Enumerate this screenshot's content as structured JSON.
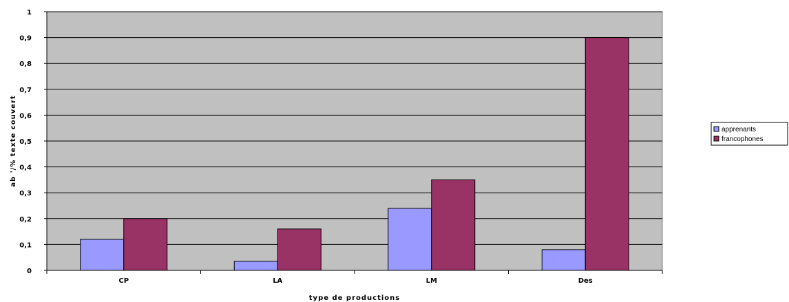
{
  "chart_data": {
    "type": "bar",
    "title": "",
    "xlabel": "type de productions",
    "ylabel": "ab '/% texte couvert",
    "categories": [
      "CP",
      "LA",
      "LM",
      "Des"
    ],
    "series": [
      {
        "name": "apprenants",
        "values": [
          0.12,
          0.035,
          0.24,
          0.08
        ],
        "color": "#9999ff"
      },
      {
        "name": "francophones",
        "values": [
          0.2,
          0.16,
          0.35,
          0.9
        ],
        "color": "#993366"
      }
    ],
    "ylim": [
      0,
      1
    ],
    "yticks": [
      0,
      0.1,
      0.2,
      0.3,
      0.4,
      0.5,
      0.6,
      0.7,
      0.8,
      0.9,
      1
    ],
    "ytick_labels": [
      "0",
      "0,1",
      "0,2",
      "0,3",
      "0,4",
      "0,5",
      "0,6",
      "0,7",
      "0,8",
      "0,9",
      "1"
    ],
    "grid": true,
    "legend_position": "right",
    "plot_background": "#c0c0c0"
  }
}
